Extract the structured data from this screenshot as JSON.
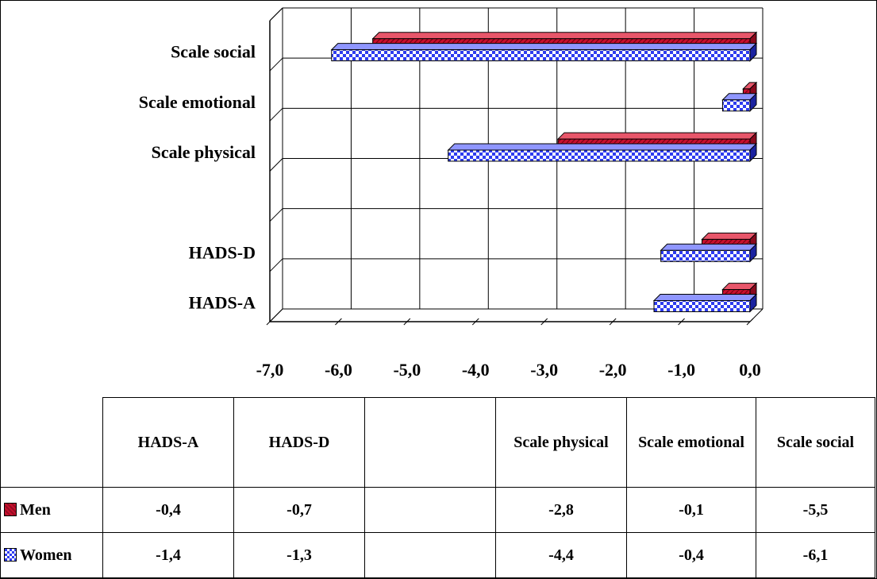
{
  "chart_data": {
    "type": "bar",
    "orientation": "horizontal",
    "categories": [
      "HADS-A",
      "HADS-D",
      "",
      "Scale physical",
      "Scale emotional",
      "Scale social"
    ],
    "series": [
      {
        "name": "Men",
        "values": [
          -0.4,
          -0.7,
          null,
          -2.8,
          -0.1,
          -5.5
        ],
        "display": [
          "-0,4",
          "-0,7",
          "",
          "-2,8",
          "-0,1",
          "-5,5"
        ],
        "color": "#c8102e"
      },
      {
        "name": "Women",
        "values": [
          -1.4,
          -1.3,
          null,
          -4.4,
          -0.4,
          -6.1
        ],
        "display": [
          "-1,4",
          "-1,3",
          "",
          "-4,4",
          "-0,4",
          "-6,1"
        ],
        "color": "#2e3cf0"
      }
    ],
    "xlim": [
      -7.0,
      0.0
    ],
    "xticks": [
      "-7,0",
      "-6,0",
      "-5,0",
      "-4,0",
      "-3,0",
      "-2,0",
      "-1,0",
      "0,0"
    ],
    "grid": true,
    "three_d": true,
    "data_table": true,
    "legend": "in data table"
  }
}
